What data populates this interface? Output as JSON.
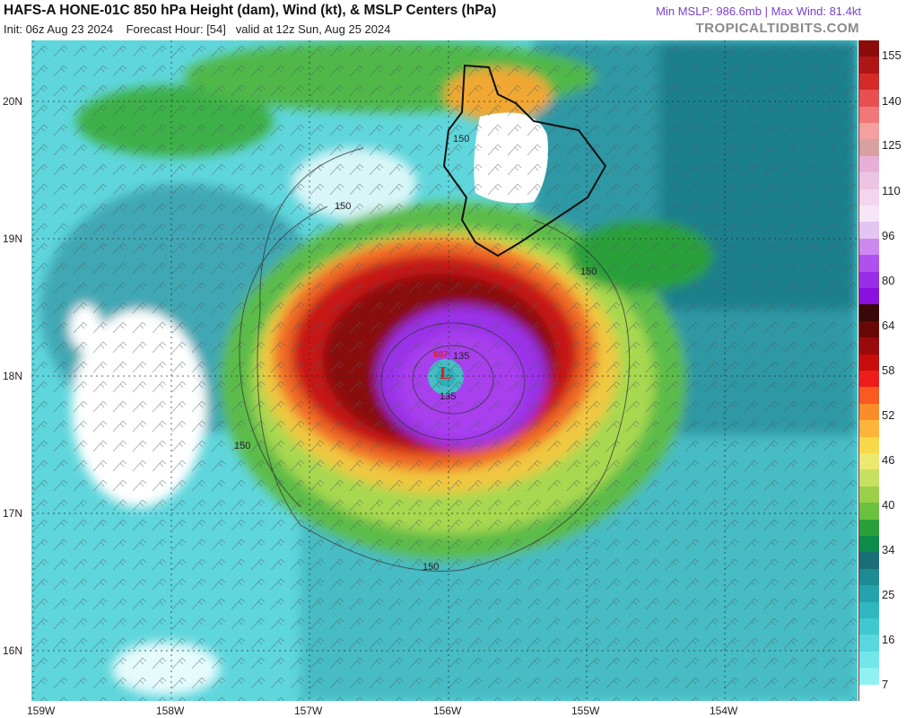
{
  "header": {
    "title": "HAFS-A HONE-01C 850 hPa Height (dam), Wind (kt), & MSLP Centers (hPa)",
    "init": "Init: 06z Aug 23 2024",
    "forecast": "Forecast Hour: [54]",
    "valid": "valid at 12z Sun, Aug 25 2024",
    "min_mslp": "Min MSLP: 986.6mb",
    "max_wind": "Max Wind: 81.4kt",
    "brand": "TROPICALTIDBITS.COM"
  },
  "axes": {
    "longitudes": [
      "159W",
      "158W",
      "157W",
      "156W",
      "155W",
      "154W"
    ],
    "latitudes": [
      "20N",
      "19N",
      "18N",
      "17N",
      "16N"
    ]
  },
  "contours": {
    "labels": [
      "150",
      "150",
      "150",
      "150",
      "150",
      "135",
      "135"
    ]
  },
  "storm": {
    "center_symbol": "L",
    "center_color": "#e02020",
    "eye_label": "987"
  },
  "colorbar": {
    "labels": [
      "155",
      "140",
      "125",
      "110",
      "96",
      "80",
      "64",
      "58",
      "52",
      "46",
      "40",
      "34",
      "25",
      "16",
      "7"
    ],
    "colors": [
      "#8b0a0a",
      "#b01515",
      "#d42a2a",
      "#e85050",
      "#f07878",
      "#f4a0a0",
      "#d8a0a0",
      "#e8b0d8",
      "#eec4e4",
      "#f4d4ee",
      "#f6e6f6",
      "#e4c4f2",
      "#cc88f0",
      "#b050ee",
      "#9a2ee8",
      "#8a10e0",
      "#3a0808",
      "#6a0808",
      "#9a0a0a",
      "#c80c0c",
      "#f01c1c",
      "#f85a20",
      "#fb8c2a",
      "#fcb43a",
      "#f8d848",
      "#ece870",
      "#c8e060",
      "#9cd04a",
      "#6cc040",
      "#2aa03a",
      "#0e8a4a",
      "#1a6e78",
      "#1e8a94",
      "#26a2ac",
      "#30b6c0",
      "#40c8d0",
      "#58d8de",
      "#72e6ea",
      "#90f0f2",
      "#ffffff"
    ]
  }
}
